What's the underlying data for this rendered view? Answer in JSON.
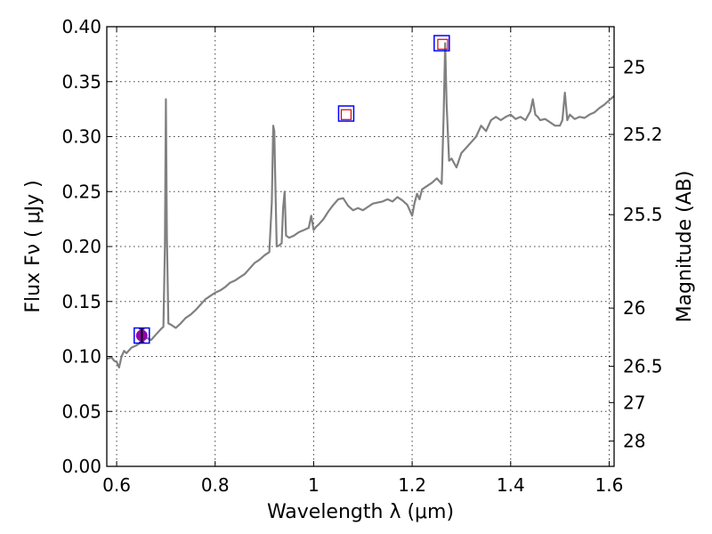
{
  "chart_data": {
    "type": "line",
    "xlabel": "Wavelength  λ (μm)",
    "ylabel": "Flux  Fν  ( μJy )",
    "ylabel_right": "Magnitude (AB)",
    "xlim": [
      0.58,
      1.61
    ],
    "ylim": [
      0.0,
      0.4
    ],
    "grid": true,
    "x_ticks": [
      0.6,
      0.8,
      1.0,
      1.2,
      1.4,
      1.6
    ],
    "x_tick_labels": [
      "0.6",
      "0.8",
      "1",
      "1.2",
      "1.4",
      "1.6"
    ],
    "y_ticks": [
      0.0,
      0.05,
      0.1,
      0.15,
      0.2,
      0.25,
      0.3,
      0.35,
      0.4
    ],
    "y_tick_labels": [
      "0.00",
      "0.05",
      "0.10",
      "0.15",
      "0.20",
      "0.25",
      "0.30",
      "0.35",
      "0.40"
    ],
    "right_ticks": [
      {
        "label": "25",
        "flux": 0.363
      },
      {
        "label": "25.2",
        "flux": 0.302
      },
      {
        "label": "25.5",
        "flux": 0.229
      },
      {
        "label": "26",
        "flux": 0.144
      },
      {
        "label": "26.5",
        "flux": 0.091
      },
      {
        "label": "27",
        "flux": 0.058
      },
      {
        "label": "28",
        "flux": 0.023
      }
    ],
    "series": [
      {
        "color": "#808080",
        "x": [
          0.58,
          0.59,
          0.595,
          0.6,
          0.605,
          0.61,
          0.615,
          0.62,
          0.63,
          0.64,
          0.65,
          0.66,
          0.67,
          0.68,
          0.69,
          0.695,
          0.698,
          0.7,
          0.702,
          0.705,
          0.71,
          0.72,
          0.73,
          0.74,
          0.75,
          0.76,
          0.77,
          0.78,
          0.79,
          0.8,
          0.81,
          0.82,
          0.83,
          0.84,
          0.85,
          0.86,
          0.87,
          0.88,
          0.89,
          0.9,
          0.91,
          0.915,
          0.918,
          0.92,
          0.922,
          0.925,
          0.93,
          0.935,
          0.938,
          0.941,
          0.944,
          0.95,
          0.96,
          0.97,
          0.98,
          0.99,
          0.995,
          1.0,
          1.005,
          1.01,
          1.02,
          1.03,
          1.04,
          1.05,
          1.06,
          1.07,
          1.08,
          1.09,
          1.1,
          1.11,
          1.12,
          1.13,
          1.14,
          1.15,
          1.16,
          1.17,
          1.18,
          1.19,
          1.2,
          1.205,
          1.21,
          1.215,
          1.22,
          1.23,
          1.24,
          1.25,
          1.26,
          1.264,
          1.267,
          1.27,
          1.275,
          1.28,
          1.29,
          1.3,
          1.31,
          1.32,
          1.33,
          1.34,
          1.35,
          1.36,
          1.37,
          1.38,
          1.39,
          1.4,
          1.41,
          1.42,
          1.43,
          1.44,
          1.445,
          1.45,
          1.455,
          1.46,
          1.47,
          1.48,
          1.49,
          1.5,
          1.505,
          1.51,
          1.515,
          1.52,
          1.53,
          1.54,
          1.55,
          1.56,
          1.57,
          1.58,
          1.59,
          1.6,
          1.61
        ],
        "y": [
          0.098,
          0.099,
          0.096,
          0.095,
          0.09,
          0.1,
          0.105,
          0.103,
          0.108,
          0.11,
          0.113,
          0.117,
          0.115,
          0.12,
          0.125,
          0.127,
          0.2,
          0.334,
          0.21,
          0.13,
          0.129,
          0.126,
          0.13,
          0.135,
          0.138,
          0.142,
          0.147,
          0.152,
          0.155,
          0.158,
          0.16,
          0.163,
          0.167,
          0.169,
          0.172,
          0.175,
          0.18,
          0.185,
          0.188,
          0.192,
          0.195,
          0.24,
          0.31,
          0.305,
          0.26,
          0.2,
          0.201,
          0.203,
          0.235,
          0.25,
          0.21,
          0.208,
          0.21,
          0.213,
          0.215,
          0.217,
          0.228,
          0.215,
          0.218,
          0.22,
          0.225,
          0.232,
          0.238,
          0.243,
          0.244,
          0.237,
          0.233,
          0.235,
          0.233,
          0.236,
          0.239,
          0.24,
          0.241,
          0.243,
          0.241,
          0.245,
          0.242,
          0.238,
          0.228,
          0.24,
          0.248,
          0.243,
          0.252,
          0.255,
          0.258,
          0.262,
          0.257,
          0.32,
          0.385,
          0.33,
          0.278,
          0.28,
          0.272,
          0.285,
          0.29,
          0.295,
          0.3,
          0.31,
          0.305,
          0.315,
          0.318,
          0.315,
          0.318,
          0.32,
          0.316,
          0.318,
          0.315,
          0.323,
          0.334,
          0.32,
          0.318,
          0.315,
          0.316,
          0.313,
          0.31,
          0.31,
          0.315,
          0.34,
          0.315,
          0.32,
          0.316,
          0.318,
          0.317,
          0.32,
          0.322,
          0.326,
          0.329,
          0.333,
          0.337
        ]
      }
    ],
    "photometry": {
      "observed": [
        {
          "x": 0.651,
          "y": 0.119,
          "err": 0.006,
          "color": "#9400b0"
        }
      ],
      "model_blue": [
        {
          "x": 0.651,
          "y": 0.119,
          "color": "#0000ff"
        },
        {
          "x": 1.066,
          "y": 0.321,
          "color": "#0000ff"
        },
        {
          "x": 1.26,
          "y": 0.385,
          "color": "#0000ff"
        }
      ],
      "model_red": [
        {
          "x": 1.066,
          "y": 0.32,
          "color": "#e00000"
        },
        {
          "x": 1.262,
          "y": 0.384,
          "color": "#e00000"
        }
      ]
    }
  }
}
